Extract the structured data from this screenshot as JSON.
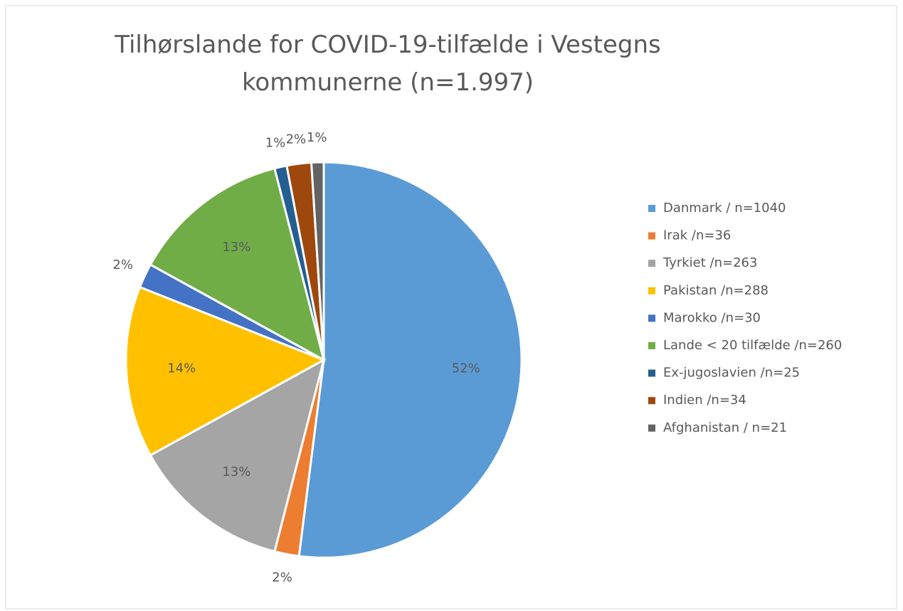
{
  "chart_data": {
    "type": "pie",
    "title": "Tilhørslande for COVID-19-tilfælde i Vestegns kommunerne (n=1.997)",
    "categories": [
      "Danmark / n=1040",
      "Irak /n=36",
      "Tyrkiet /n=263",
      "Pakistan /n=288",
      "Marokko /n=30",
      "Lande < 20 tilfælde /n=260",
      "Ex-jugoslavien /n=25",
      "Indien /n=34",
      "Afghanistan / n=21"
    ],
    "values": [
      52,
      2,
      13,
      14,
      2,
      13,
      1,
      2,
      1
    ],
    "value_labels": [
      "52%",
      "2%",
      "13%",
      "14%",
      "2%",
      "13%",
      "1%",
      "2%",
      "1%"
    ],
    "colors": [
      "#5b9bd5",
      "#ed7d31",
      "#a5a5a5",
      "#ffc000",
      "#4472c4",
      "#70ad47",
      "#255e91",
      "#9e480e",
      "#636363"
    ],
    "legend": "right"
  }
}
